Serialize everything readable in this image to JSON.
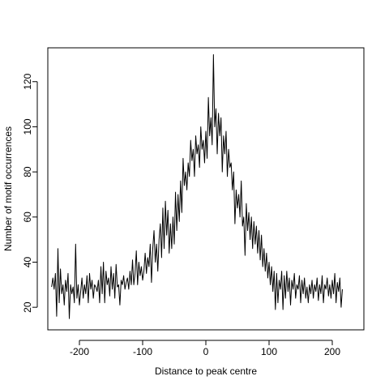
{
  "chart_data": {
    "type": "line",
    "title": "",
    "xlabel": "Distance to peak centre",
    "ylabel": "Number of motif occurrences",
    "xlim": [
      -250,
      250
    ],
    "ylim": [
      10,
      135
    ],
    "x_ticks": [
      -200,
      -100,
      0,
      100,
      200
    ],
    "y_ticks": [
      20,
      40,
      60,
      80,
      100,
      120
    ],
    "x_tick_labels": [
      "-200",
      "-100",
      "0",
      "100",
      "200"
    ],
    "y_tick_labels": [
      "20",
      "40",
      "60",
      "80",
      "100",
      "120"
    ],
    "grid": false,
    "legend": "none",
    "line_color": "#000000",
    "series": [
      {
        "x_start": -244,
        "x_step": 2,
        "values": [
          29,
          33,
          28,
          35,
          16,
          46,
          22,
          37,
          26,
          30,
          21,
          32,
          27,
          35,
          15,
          30,
          26,
          29,
          22,
          48,
          24,
          30,
          21,
          27,
          33,
          24,
          30,
          26,
          34,
          22,
          35,
          28,
          32,
          24,
          30,
          29,
          27,
          32,
          22,
          38,
          26,
          40,
          22,
          36,
          30,
          33,
          25,
          38,
          28,
          35,
          24,
          39,
          29,
          30,
          21,
          32,
          30,
          34,
          28,
          31,
          33,
          28,
          36,
          30,
          41,
          30,
          35,
          45,
          30,
          40,
          34,
          38,
          32,
          36,
          44,
          35,
          42,
          38,
          48,
          31,
          46,
          54,
          40,
          48,
          36,
          50,
          57,
          42,
          64,
          46,
          67,
          52,
          63,
          44,
          57,
          46,
          60,
          48,
          71,
          54,
          70,
          58,
          76,
          62,
          86,
          74,
          80,
          72,
          84,
          78,
          94,
          85,
          90,
          78,
          96,
          88,
          92,
          82,
          100,
          90,
          94,
          84,
          98,
          86,
          113,
          96,
          104,
          92,
          132,
          100,
          108,
          88,
          106,
          96,
          104,
          80,
          96,
          88,
          98,
          78,
          90,
          82,
          84,
          72,
          80,
          57,
          72,
          64,
          70,
          60,
          76,
          56,
          60,
          43,
          66,
          54,
          62,
          50,
          60,
          46,
          58,
          48,
          56,
          44,
          54,
          41,
          52,
          38,
          46,
          36,
          44,
          33,
          40,
          30,
          38,
          27,
          36,
          19,
          35,
          22,
          32,
          28,
          36,
          19,
          34,
          24,
          36,
          27,
          33,
          21,
          32,
          28,
          35,
          24,
          30,
          28,
          34,
          22,
          32,
          26,
          33,
          24,
          29,
          22,
          30,
          26,
          32,
          24,
          30,
          27,
          33,
          23,
          30,
          26,
          34,
          22,
          30,
          28,
          33,
          25,
          30,
          24,
          32,
          26,
          35,
          22,
          31,
          27,
          33,
          20,
          28
        ]
      }
    ]
  }
}
